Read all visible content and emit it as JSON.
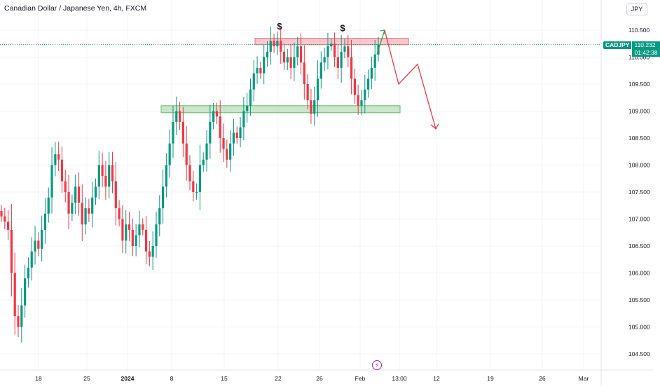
{
  "header": {
    "title": "Canadian Dollar / Japanese Yen, 4h, FXCM"
  },
  "currency_badge": "JPY",
  "last_price_tag": {
    "symbol": "CADJPY",
    "price": "110.232",
    "countdown": "01:42:38",
    "color": "#089981"
  },
  "colors": {
    "up_candle": "#089981",
    "down_candle": "#f23645",
    "resistance_zone": "#f5a3ad",
    "support_zone": "#a5d6a7",
    "projection_up": "#22ab46",
    "projection_down": "#f23645"
  },
  "chart_data": {
    "type": "candlestick",
    "timeframe": "4h",
    "y_axis": {
      "ticks": [
        "110.500",
        "110.000",
        "109.500",
        "109.000",
        "108.500",
        "108.000",
        "107.500",
        "107.000",
        "106.500",
        "106.000",
        "105.500",
        "105.000",
        "104.500"
      ],
      "range": [
        104.4,
        110.9
      ]
    },
    "x_axis": {
      "ticks": [
        "18",
        "25",
        "2024",
        "8",
        "15",
        "22",
        "26",
        "Feb",
        "13:00",
        "12",
        "19",
        "26",
        "Mar"
      ]
    },
    "last_price": 110.232,
    "annotations": [
      {
        "type": "zone",
        "name": "resistance-zone",
        "from_label": "22",
        "to_label": "Feb",
        "price_low": 110.23,
        "price_high": 110.35
      },
      {
        "type": "zone",
        "name": "support-zone",
        "from_label": "8",
        "to_label": "Feb",
        "price_low": 108.97,
        "price_high": 109.1
      },
      {
        "type": "label",
        "text": "$",
        "near_label": "22",
        "price": 110.55
      },
      {
        "type": "label",
        "text": "$",
        "near_label": "26",
        "price": 110.52
      }
    ],
    "projection": {
      "up_leg": [
        [
          110.05,
          0
        ],
        [
          110.5,
          1
        ]
      ],
      "down_path": [
        110.5,
        109.5,
        109.87,
        108.67
      ]
    },
    "closes": [
      107.05,
      106.95,
      106.8,
      106.0,
      105.2,
      105.0,
      105.4,
      105.9,
      106.1,
      106.4,
      106.6,
      106.45,
      106.8,
      107.1,
      107.4,
      108.0,
      108.2,
      108.1,
      107.7,
      107.5,
      107.1,
      107.3,
      107.6,
      107.3,
      106.9,
      107.2,
      107.1,
      107.4,
      107.6,
      108.0,
      107.8,
      107.6,
      108.0,
      107.7,
      107.2,
      107.0,
      106.6,
      106.9,
      106.8,
      106.5,
      106.7,
      106.9,
      106.8,
      106.4,
      106.3,
      106.5,
      106.9,
      107.2,
      107.6,
      108.0,
      108.4,
      108.8,
      109.0,
      108.8,
      108.4,
      108.0,
      107.7,
      107.5,
      107.5,
      108.0,
      108.1,
      108.4,
      108.8,
      109.0,
      108.9,
      108.5,
      108.3,
      108.1,
      108.4,
      108.6,
      108.5,
      108.7,
      109.0,
      109.1,
      109.4,
      109.7,
      109.8,
      109.7,
      110.0,
      110.1,
      110.3,
      110.2,
      110.3,
      110.1,
      109.9,
      110.0,
      109.8,
      110.0,
      110.2,
      109.9,
      109.5,
      109.2,
      108.95,
      109.2,
      109.6,
      109.9,
      110.0,
      110.2,
      110.25,
      110.0,
      109.8,
      110.1,
      110.2,
      110.0,
      109.6,
      109.3,
      109.1,
      109.2,
      109.4,
      109.6,
      109.8,
      110.05,
      110.232
    ]
  }
}
